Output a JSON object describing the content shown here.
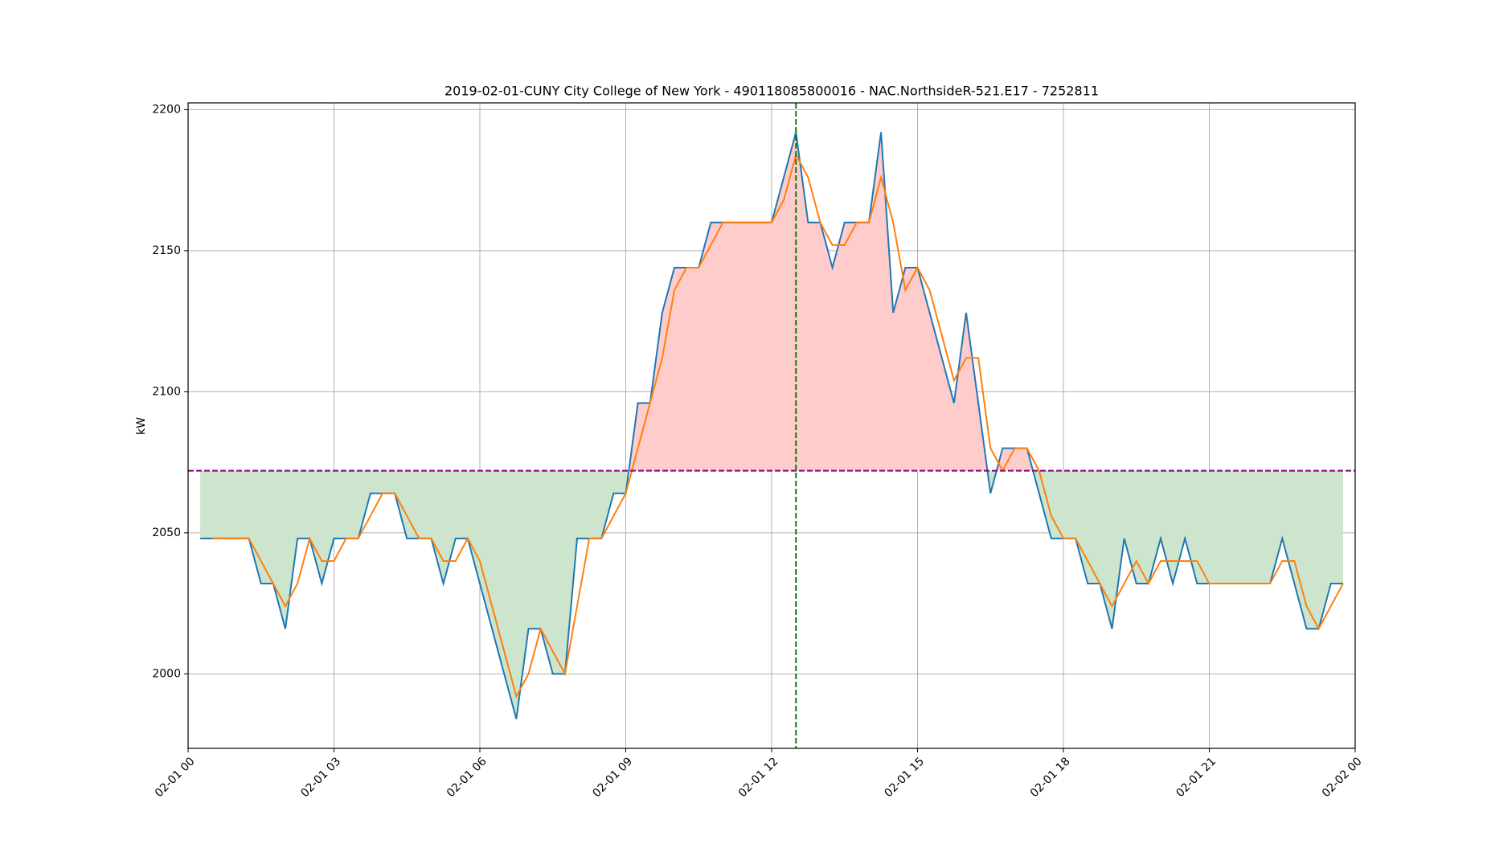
{
  "chart_data": {
    "type": "line",
    "title": "2019-02-01-CUNY City College of New York - 490118085800016 - NAC.NorthsideR-521.E17 - 7252811",
    "ylabel": "kW",
    "x": [
      0.25,
      0.5,
      0.75,
      1,
      1.25,
      1.5,
      1.75,
      2,
      2.25,
      2.5,
      2.75,
      3,
      3.25,
      3.5,
      3.75,
      4,
      4.25,
      4.5,
      4.75,
      5,
      5.25,
      5.5,
      5.75,
      6,
      6.25,
      6.5,
      6.75,
      7,
      7.25,
      7.5,
      7.75,
      8,
      8.25,
      8.5,
      8.75,
      9,
      9.25,
      9.5,
      9.75,
      10,
      10.25,
      10.5,
      10.75,
      11,
      11.25,
      11.5,
      11.75,
      12,
      12.25,
      12.5,
      12.75,
      13,
      13.25,
      13.5,
      13.75,
      14,
      14.25,
      14.5,
      14.75,
      15,
      15.25,
      15.5,
      15.75,
      16,
      16.25,
      16.5,
      16.75,
      17,
      17.25,
      17.5,
      17.75,
      18,
      18.25,
      18.5,
      18.75,
      19,
      19.25,
      19.5,
      19.75,
      20,
      20.25,
      20.5,
      20.75,
      21,
      21.25,
      21.5,
      21.75,
      22,
      22.25,
      22.5,
      22.75,
      23,
      23.25,
      23.5,
      23.75
    ],
    "series": [
      {
        "color": "#1f77b4",
        "values": [
          2048,
          2048,
          2048,
          2048,
          2048,
          2032,
          2032,
          2016,
          2048,
          2048,
          2032,
          2048,
          2048,
          2048,
          2064,
          2064,
          2064,
          2048,
          2048,
          2048,
          2032,
          2048,
          2048,
          2032,
          2016,
          2000,
          1984,
          2016,
          2016,
          2000,
          2000,
          2048,
          2048,
          2048,
          2064,
          2064,
          2096,
          2096,
          2128,
          2144,
          2144,
          2144,
          2160,
          2160,
          2160,
          2160,
          2160,
          2160,
          2176,
          2192,
          2160,
          2160,
          2144,
          2160,
          2160,
          2160,
          2192,
          2128,
          2144,
          2144,
          2128,
          2112,
          2096,
          2128,
          2096,
          2064,
          2080,
          2080,
          2080,
          2064,
          2048,
          2048,
          2048,
          2032,
          2032,
          2016,
          2048,
          2032,
          2032,
          2048,
          2032,
          2048,
          2032,
          2032,
          2032,
          2032,
          2032,
          2032,
          2032,
          2048,
          2032,
          2016,
          2016,
          2032,
          2032
        ]
      },
      {
        "color": "#ff7f0e",
        "values": [
          null,
          2048,
          2048,
          2048,
          2048,
          2040,
          2032,
          2024,
          2032,
          2048,
          2040,
          2040,
          2048,
          2048,
          2056,
          2064,
          2064,
          2056,
          2048,
          2048,
          2040,
          2040,
          2048,
          2040,
          2024,
          2008,
          1992,
          2000,
          2016,
          2008,
          2000,
          2024,
          2048,
          2048,
          2056,
          2064,
          2080,
          2096,
          2112,
          2136,
          2144,
          2144,
          2152,
          2160,
          2160,
          2160,
          2160,
          2160,
          2168,
          2184,
          2176,
          2160,
          2152,
          2152,
          2160,
          2160,
          2176,
          2160,
          2136,
          2144,
          2136,
          2120,
          2104,
          2112,
          2112,
          2080,
          2072,
          2080,
          2080,
          2072,
          2056,
          2048,
          2048,
          2040,
          2032,
          2024,
          2032,
          2040,
          2032,
          2040,
          2040,
          2040,
          2040,
          2032,
          2032,
          2032,
          2032,
          2032,
          2032,
          2040,
          2040,
          2024,
          2016,
          2024,
          2032
        ]
      }
    ],
    "hline": {
      "value": 2072,
      "color": "#800080"
    },
    "vline": {
      "value": 12.5,
      "color": "#008000"
    },
    "fill_above_color": "#ffcccc",
    "fill_below_color": "#cce5cc",
    "xlim": [
      0,
      24
    ],
    "xticks": [
      {
        "value": 0,
        "label": "02-01 00"
      },
      {
        "value": 3,
        "label": "02-01 03"
      },
      {
        "value": 6,
        "label": "02-01 06"
      },
      {
        "value": 9,
        "label": "02-01 09"
      },
      {
        "value": 12,
        "label": "02-01 12"
      },
      {
        "value": 15,
        "label": "02-01 15"
      },
      {
        "value": 18,
        "label": "02-01 18"
      },
      {
        "value": 21,
        "label": "02-01 21"
      },
      {
        "value": 24,
        "label": "02-02 00"
      }
    ],
    "ylim": [
      1973.6,
      2202.4
    ],
    "yticks": [
      2000,
      2050,
      2100,
      2150,
      2200
    ],
    "grid": true
  }
}
